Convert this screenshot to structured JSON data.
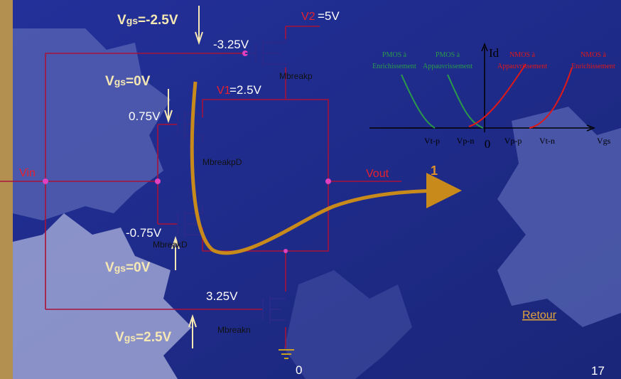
{
  "circuit": {
    "vgs_top": {
      "main": "V",
      "sub": "gs",
      "value": "=-2.5V"
    },
    "v2": {
      "name": "V2",
      "value": "=5V"
    },
    "gate_top": "-3.25V",
    "mbreakp": "Mbreakp",
    "vgs_mid_top": {
      "main": "V",
      "sub": "gs",
      "value": "=0V"
    },
    "v1": {
      "name": "V1",
      "value": "=2.5V"
    },
    "gate_mid_top": "0.75V",
    "mbreakpd": "MbreakpD",
    "vin": "Vin",
    "vout": "Vout",
    "logic_level": "1",
    "gate_mid_bottom": "-0.75V",
    "mbreakd": "MbreakD",
    "vgs_mid_bottom": {
      "main": "V",
      "sub": "gs",
      "value": "=0V"
    },
    "gate_bottom": "3.25V",
    "mbreakn": "Mbreakn",
    "vgs_bottom": {
      "main": "V",
      "sub": "gs",
      "value": "=2.5V"
    },
    "ground": "0"
  },
  "graph": {
    "y_label": "Id",
    "x_label": "Vgs",
    "curves": [
      "PMOS à Enrichissement",
      "PMOS à Appauvrissement",
      "NMOS à Appauvrissement",
      "NMOS à Enrichissement"
    ],
    "ticks": [
      "Vt-p",
      "Vp-n",
      "0",
      "Vp-p",
      "Vt-n"
    ]
  },
  "footer": {
    "link": "Retour",
    "page": "17"
  }
}
